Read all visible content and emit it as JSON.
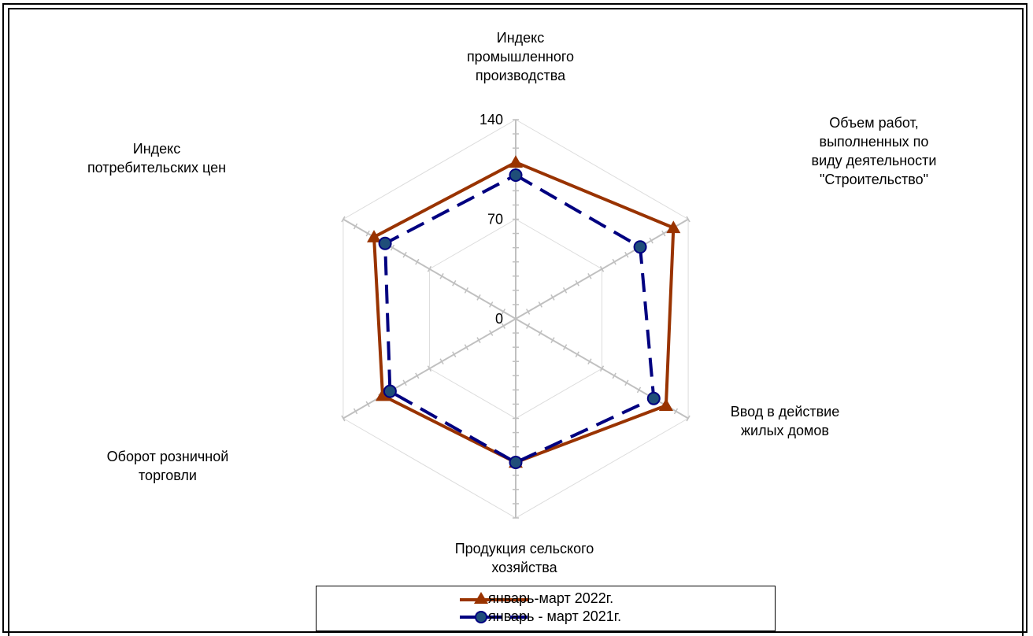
{
  "chart_data": {
    "type": "radar",
    "categories": [
      [
        "Индекс",
        "промышленного",
        "производства"
      ],
      [
        "Объем работ,",
        "выполненных  по",
        "виду деятельности",
        "\"Строительство\""
      ],
      [
        "Ввод в действие",
        "жилых домов"
      ],
      [
        "Продукция сельского",
        "хозяйства"
      ],
      [
        "Оборот розничной",
        "торговли"
      ],
      [
        "Индекс",
        "потребительских цен"
      ]
    ],
    "radial_ticks": [
      0,
      70,
      140
    ],
    "rmax": 140,
    "series": [
      {
        "name": "январь-март 2022г.",
        "values": [
          110,
          128,
          122,
          101,
          108,
          115
        ],
        "color": "#993300",
        "marker": "triangle",
        "dash": "solid"
      },
      {
        "name": "январь - март 2021г.",
        "values": [
          101,
          101,
          112,
          101,
          102,
          106
        ],
        "color": "#000080",
        "marker": "circle",
        "dash": "dashed"
      }
    ],
    "grid": true,
    "legend_position": "bottom"
  }
}
